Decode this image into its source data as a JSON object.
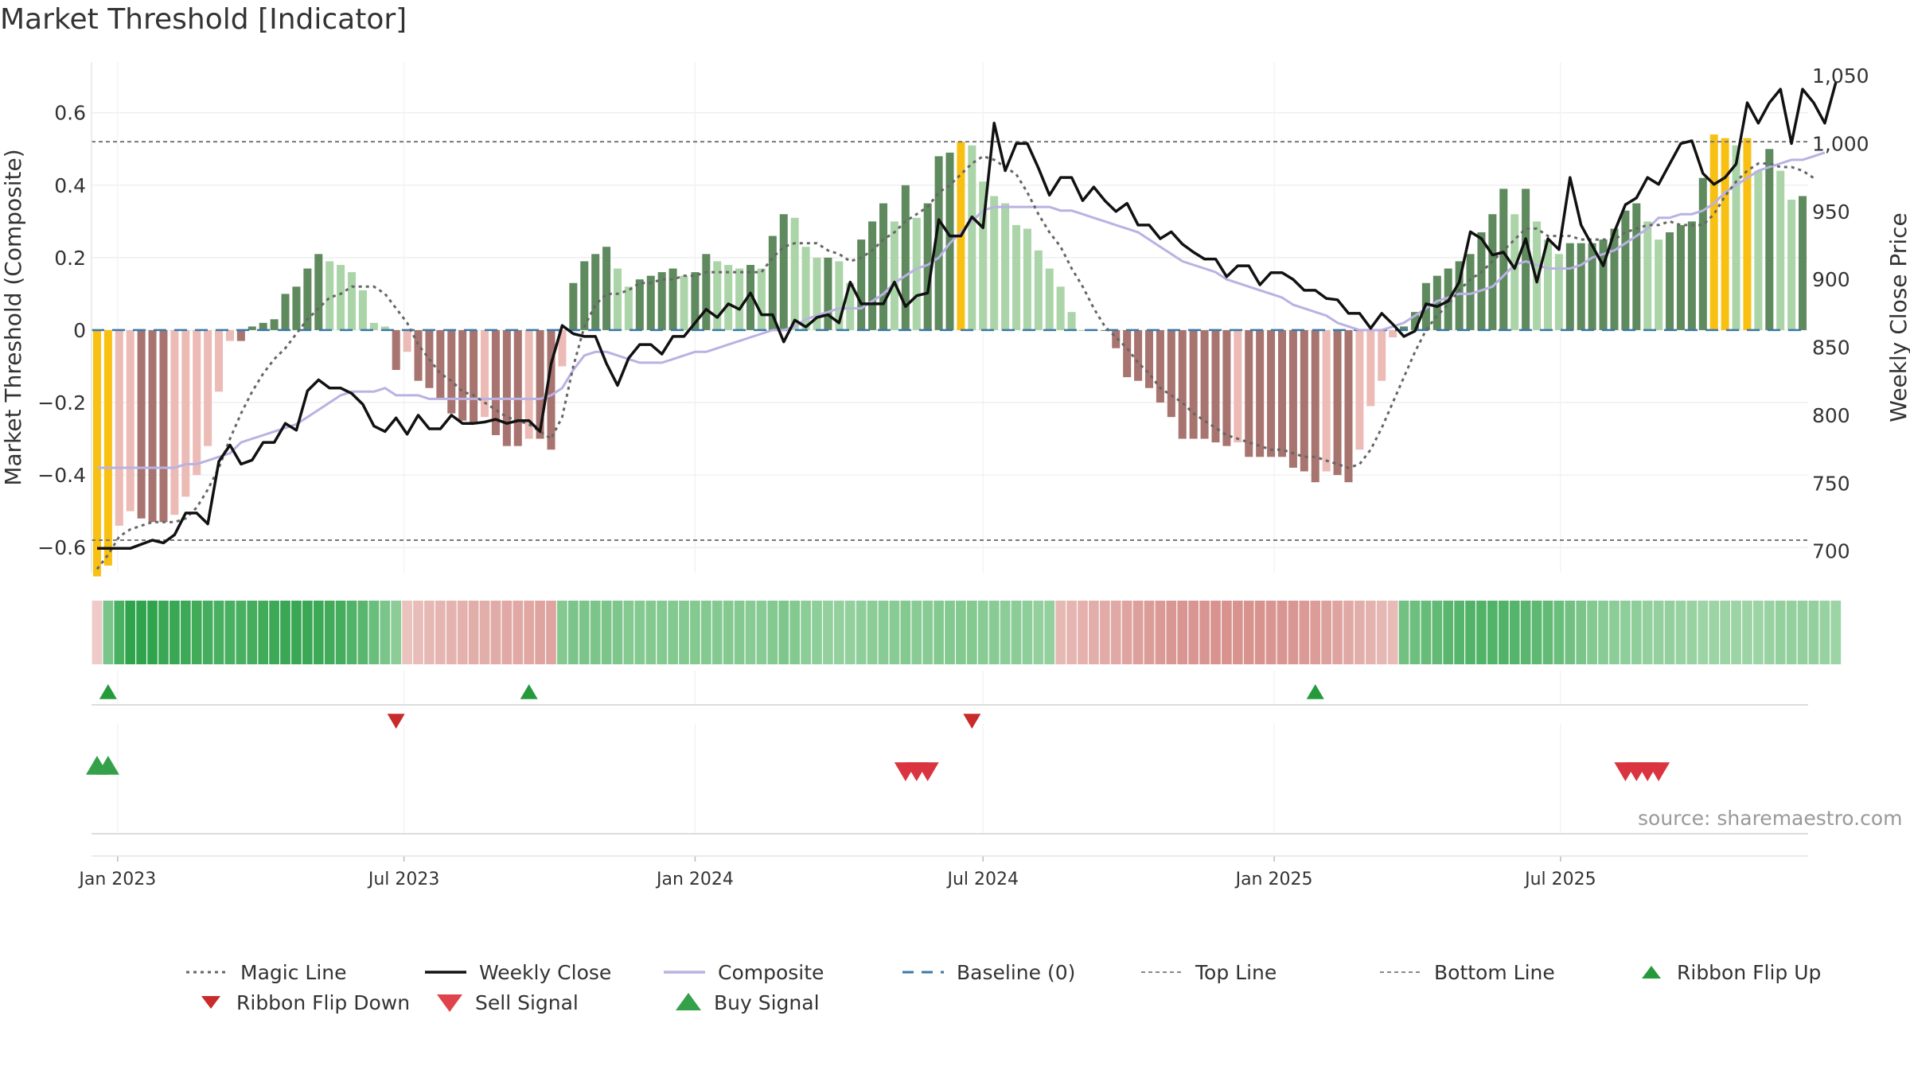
{
  "title": "Market Threshold [Indicator]",
  "source": "source: sharemaestro.com",
  "colors": {
    "bull_dark": "#5e8a5e",
    "bull_light": "#abd5a8",
    "bear_dark": "#a8746f",
    "bear_light": "#ecbbb6",
    "extreme": "#f9c014",
    "magic": "#666666",
    "close": "#111111",
    "composite": "#b9b2e2",
    "baseline": "#3a78a8",
    "thresholds": "#777777",
    "buy": "#35a04a",
    "sell": "#d9343f",
    "flip_up": "#259a3a",
    "flip_down": "#c92a2a"
  },
  "chart_data": {
    "type": "bar",
    "x_start": "2022-12-19",
    "x_interval": "weekly",
    "x_ticks": [
      "Jan 2023",
      "Jul 2023",
      "Jan 2024",
      "Jul 2024",
      "Jan 2025",
      "Jul 2025"
    ],
    "y_left_label": "Market Threshold (Composite)",
    "y_left_ticks": [
      "0.6",
      "0.4",
      "0.2",
      "0",
      "−0.2",
      "−0.4",
      "−0.6"
    ],
    "y_left_lim": [
      -0.67,
      0.74
    ],
    "y_right_label": "Weekly Close Price",
    "y_right_ticks": [
      "1,050",
      "1,000",
      "950",
      "900",
      "850",
      "800",
      "750",
      "700"
    ],
    "y_right_lim": [
      684,
      1060
    ],
    "top_line": 0.52,
    "bottom_line": -0.58,
    "baseline": 0,
    "grid": true,
    "composite_bars": [
      -0.68,
      -0.65,
      -0.54,
      -0.5,
      -0.52,
      -0.53,
      -0.53,
      -0.51,
      -0.46,
      -0.4,
      -0.32,
      -0.17,
      -0.03,
      -0.03,
      0.01,
      0.02,
      0.03,
      0.1,
      0.12,
      0.17,
      0.21,
      0.19,
      0.18,
      0.16,
      0.11,
      0.02,
      0.01,
      -0.11,
      -0.06,
      -0.14,
      -0.16,
      -0.19,
      -0.23,
      -0.25,
      -0.26,
      -0.24,
      -0.29,
      -0.32,
      -0.32,
      -0.3,
      -0.3,
      -0.33,
      -0.1,
      0.13,
      0.19,
      0.21,
      0.23,
      0.17,
      0.12,
      0.14,
      0.15,
      0.16,
      0.17,
      0.15,
      0.16,
      0.21,
      0.19,
      0.18,
      0.17,
      0.18,
      0.17,
      0.26,
      0.32,
      0.31,
      0.23,
      0.2,
      0.2,
      0.19,
      0.13,
      0.25,
      0.3,
      0.35,
      0.3,
      0.4,
      0.31,
      0.35,
      0.48,
      0.49,
      0.52,
      0.51,
      0.41,
      0.37,
      0.35,
      0.29,
      0.28,
      0.22,
      0.17,
      0.12,
      0.05,
      0.0,
      0.0,
      0.0,
      -0.05,
      -0.13,
      -0.14,
      -0.16,
      -0.2,
      -0.24,
      -0.3,
      -0.3,
      -0.3,
      -0.31,
      -0.32,
      -0.31,
      -0.35,
      -0.35,
      -0.35,
      -0.35,
      -0.38,
      -0.39,
      -0.42,
      -0.39,
      -0.4,
      -0.42,
      -0.33,
      -0.21,
      -0.14,
      -0.02,
      0.01,
      0.05,
      0.13,
      0.15,
      0.17,
      0.19,
      0.21,
      0.27,
      0.32,
      0.39,
      0.32,
      0.39,
      0.3,
      0.25,
      0.21,
      0.24,
      0.24,
      0.24,
      0.25,
      0.28,
      0.33,
      0.35,
      0.3,
      0.25,
      0.27,
      0.29,
      0.3,
      0.42,
      0.54,
      0.53,
      0.51,
      0.53,
      0.44,
      0.5,
      0.44,
      0.36,
      0.37
    ],
    "weekly_close": [
      702,
      702,
      702,
      702,
      705,
      708,
      706,
      712,
      728,
      728,
      720,
      766,
      778,
      764,
      767,
      780,
      780,
      794,
      789,
      818,
      826,
      820,
      820,
      816,
      808,
      792,
      788,
      798,
      786,
      800,
      790,
      790,
      800,
      794,
      794,
      795,
      797,
      794,
      796,
      796,
      788,
      838,
      866,
      860,
      858,
      858,
      838,
      822,
      842,
      852,
      852,
      845,
      858,
      858,
      868,
      878,
      872,
      882,
      878,
      890,
      874,
      874,
      854,
      870,
      865,
      872,
      874,
      868,
      898,
      882,
      882,
      882,
      898,
      880,
      888,
      890,
      944,
      932,
      932,
      946,
      938,
      1015,
      980,
      1000,
      1000,
      982,
      962,
      975,
      975,
      958,
      968,
      958,
      950,
      956,
      940,
      940,
      930,
      935,
      926,
      920,
      915,
      915,
      902,
      910,
      910,
      896,
      905,
      905,
      900,
      892,
      892,
      886,
      885,
      875,
      875,
      864,
      875,
      867,
      858,
      862,
      882,
      880,
      884,
      898,
      935,
      930,
      918,
      920,
      908,
      930,
      898,
      930,
      922,
      975,
      940,
      925,
      910,
      935,
      955,
      960,
      975,
      970,
      985,
      1000,
      1002,
      978,
      970,
      975,
      985,
      1030,
      1015,
      1030,
      1040,
      1000,
      1040,
      1030,
      1015,
      1045
    ],
    "composite_line": [
      -0.38,
      -0.38,
      -0.38,
      -0.38,
      -0.38,
      -0.38,
      -0.38,
      -0.38,
      -0.37,
      -0.37,
      -0.36,
      -0.35,
      -0.34,
      -0.31,
      -0.3,
      -0.29,
      -0.28,
      -0.27,
      -0.26,
      -0.24,
      -0.22,
      -0.2,
      -0.18,
      -0.17,
      -0.17,
      -0.17,
      -0.16,
      -0.18,
      -0.18,
      -0.18,
      -0.19,
      -0.19,
      -0.19,
      -0.19,
      -0.19,
      -0.19,
      -0.19,
      -0.19,
      -0.19,
      -0.19,
      -0.19,
      -0.18,
      -0.16,
      -0.11,
      -0.07,
      -0.06,
      -0.06,
      -0.07,
      -0.08,
      -0.09,
      -0.09,
      -0.09,
      -0.08,
      -0.07,
      -0.06,
      -0.06,
      -0.05,
      -0.04,
      -0.03,
      -0.02,
      -0.01,
      0.0,
      0.0,
      0.01,
      0.03,
      0.04,
      0.05,
      0.06,
      0.06,
      0.06,
      0.08,
      0.1,
      0.13,
      0.15,
      0.17,
      0.18,
      0.2,
      0.24,
      0.27,
      0.3,
      0.33,
      0.34,
      0.34,
      0.34,
      0.34,
      0.34,
      0.34,
      0.33,
      0.33,
      0.32,
      0.31,
      0.3,
      0.29,
      0.28,
      0.27,
      0.25,
      0.23,
      0.21,
      0.19,
      0.18,
      0.17,
      0.16,
      0.14,
      0.13,
      0.12,
      0.11,
      0.1,
      0.09,
      0.07,
      0.06,
      0.05,
      0.04,
      0.02,
      0.01,
      0.0,
      0.0,
      0.0,
      0.01,
      0.02,
      0.04,
      0.06,
      0.08,
      0.09,
      0.1,
      0.1,
      0.11,
      0.12,
      0.15,
      0.18,
      0.19,
      0.18,
      0.17,
      0.17,
      0.17,
      0.18,
      0.2,
      0.21,
      0.22,
      0.24,
      0.26,
      0.28,
      0.31,
      0.31,
      0.32,
      0.32,
      0.33,
      0.35,
      0.38,
      0.4,
      0.42,
      0.44,
      0.45,
      0.46,
      0.47,
      0.47,
      0.48,
      0.49
    ],
    "magic_line": [
      -0.66,
      -0.62,
      -0.57,
      -0.55,
      -0.54,
      -0.53,
      -0.53,
      -0.53,
      -0.52,
      -0.49,
      -0.44,
      -0.38,
      -0.3,
      -0.23,
      -0.17,
      -0.12,
      -0.08,
      -0.05,
      -0.01,
      0.03,
      0.06,
      0.09,
      0.1,
      0.12,
      0.12,
      0.12,
      0.1,
      0.06,
      0.02,
      -0.04,
      -0.08,
      -0.12,
      -0.14,
      -0.17,
      -0.18,
      -0.2,
      -0.22,
      -0.24,
      -0.25,
      -0.26,
      -0.28,
      -0.3,
      -0.24,
      -0.1,
      0.01,
      0.07,
      0.1,
      0.1,
      0.11,
      0.13,
      0.13,
      0.14,
      0.14,
      0.15,
      0.15,
      0.16,
      0.16,
      0.16,
      0.16,
      0.16,
      0.16,
      0.2,
      0.23,
      0.24,
      0.24,
      0.24,
      0.22,
      0.21,
      0.19,
      0.2,
      0.22,
      0.25,
      0.27,
      0.3,
      0.32,
      0.34,
      0.38,
      0.4,
      0.43,
      0.46,
      0.48,
      0.47,
      0.45,
      0.43,
      0.38,
      0.32,
      0.27,
      0.23,
      0.17,
      0.12,
      0.06,
      0.01,
      -0.02,
      -0.05,
      -0.09,
      -0.12,
      -0.16,
      -0.18,
      -0.2,
      -0.23,
      -0.25,
      -0.27,
      -0.29,
      -0.3,
      -0.31,
      -0.32,
      -0.33,
      -0.33,
      -0.34,
      -0.35,
      -0.35,
      -0.36,
      -0.37,
      -0.38,
      -0.37,
      -0.33,
      -0.27,
      -0.2,
      -0.13,
      -0.06,
      0.0,
      0.04,
      0.07,
      0.11,
      0.14,
      0.16,
      0.19,
      0.22,
      0.25,
      0.28,
      0.28,
      0.26,
      0.26,
      0.26,
      0.25,
      0.25,
      0.25,
      0.25,
      0.27,
      0.28,
      0.29,
      0.29,
      0.3,
      0.29,
      0.29,
      0.29,
      0.32,
      0.37,
      0.41,
      0.44,
      0.46,
      0.46,
      0.45,
      0.45,
      0.44,
      0.42
    ],
    "ribbon_values": [
      -0.15,
      0.5,
      0.8,
      0.95,
      0.95,
      0.95,
      0.9,
      0.9,
      0.88,
      0.85,
      0.82,
      0.8,
      0.8,
      0.8,
      0.82,
      0.85,
      0.88,
      0.9,
      0.9,
      0.9,
      0.88,
      0.85,
      0.82,
      0.75,
      0.7,
      0.6,
      0.5,
      0.4,
      -0.25,
      -0.3,
      -0.35,
      -0.38,
      -0.4,
      -0.42,
      -0.45,
      -0.45,
      -0.48,
      -0.5,
      -0.5,
      -0.52,
      -0.55,
      -0.55,
      0.45,
      0.5,
      0.5,
      0.5,
      0.5,
      0.48,
      0.45,
      0.45,
      0.45,
      0.45,
      0.45,
      0.45,
      0.45,
      0.45,
      0.45,
      0.45,
      0.45,
      0.42,
      0.42,
      0.45,
      0.48,
      0.45,
      0.4,
      0.38,
      0.35,
      0.35,
      0.35,
      0.38,
      0.4,
      0.42,
      0.42,
      0.45,
      0.42,
      0.42,
      0.45,
      0.45,
      0.45,
      0.45,
      0.42,
      0.42,
      0.4,
      0.4,
      0.38,
      0.35,
      0.35,
      -0.35,
      -0.38,
      -0.42,
      -0.45,
      -0.48,
      -0.5,
      -0.55,
      -0.6,
      -0.62,
      -0.65,
      -0.68,
      -0.7,
      -0.7,
      -0.7,
      -0.72,
      -0.72,
      -0.72,
      -0.72,
      -0.72,
      -0.7,
      -0.7,
      -0.68,
      -0.65,
      -0.62,
      -0.58,
      -0.55,
      -0.5,
      -0.45,
      -0.4,
      -0.35,
      -0.32,
      0.55,
      0.58,
      0.62,
      0.65,
      0.7,
      0.72,
      0.75,
      0.75,
      0.75,
      0.75,
      0.72,
      0.7,
      0.68,
      0.65,
      0.6,
      0.55,
      0.5,
      0.45,
      0.42,
      0.4,
      0.38,
      0.38,
      0.35,
      0.35,
      0.35,
      0.32,
      0.32,
      0.3,
      0.3,
      0.3,
      0.3,
      0.3,
      0.3,
      0.32,
      0.35,
      0.35,
      0.35,
      0.35,
      0.32,
      0.3
    ],
    "ribbon_flip_up": [
      1,
      39,
      110
    ],
    "ribbon_flip_down": [
      27,
      79
    ],
    "buy_signals": [
      0,
      1
    ],
    "sell_signals": [
      73,
      74,
      75,
      138,
      139,
      140,
      141
    ],
    "legend": [
      "Magic Line",
      "Weekly Close",
      "Composite",
      "Baseline (0)",
      "Top Line",
      "Bottom Line",
      "Ribbon Flip Up",
      "Ribbon Flip Down",
      "Sell Signal",
      "Buy Signal"
    ]
  }
}
